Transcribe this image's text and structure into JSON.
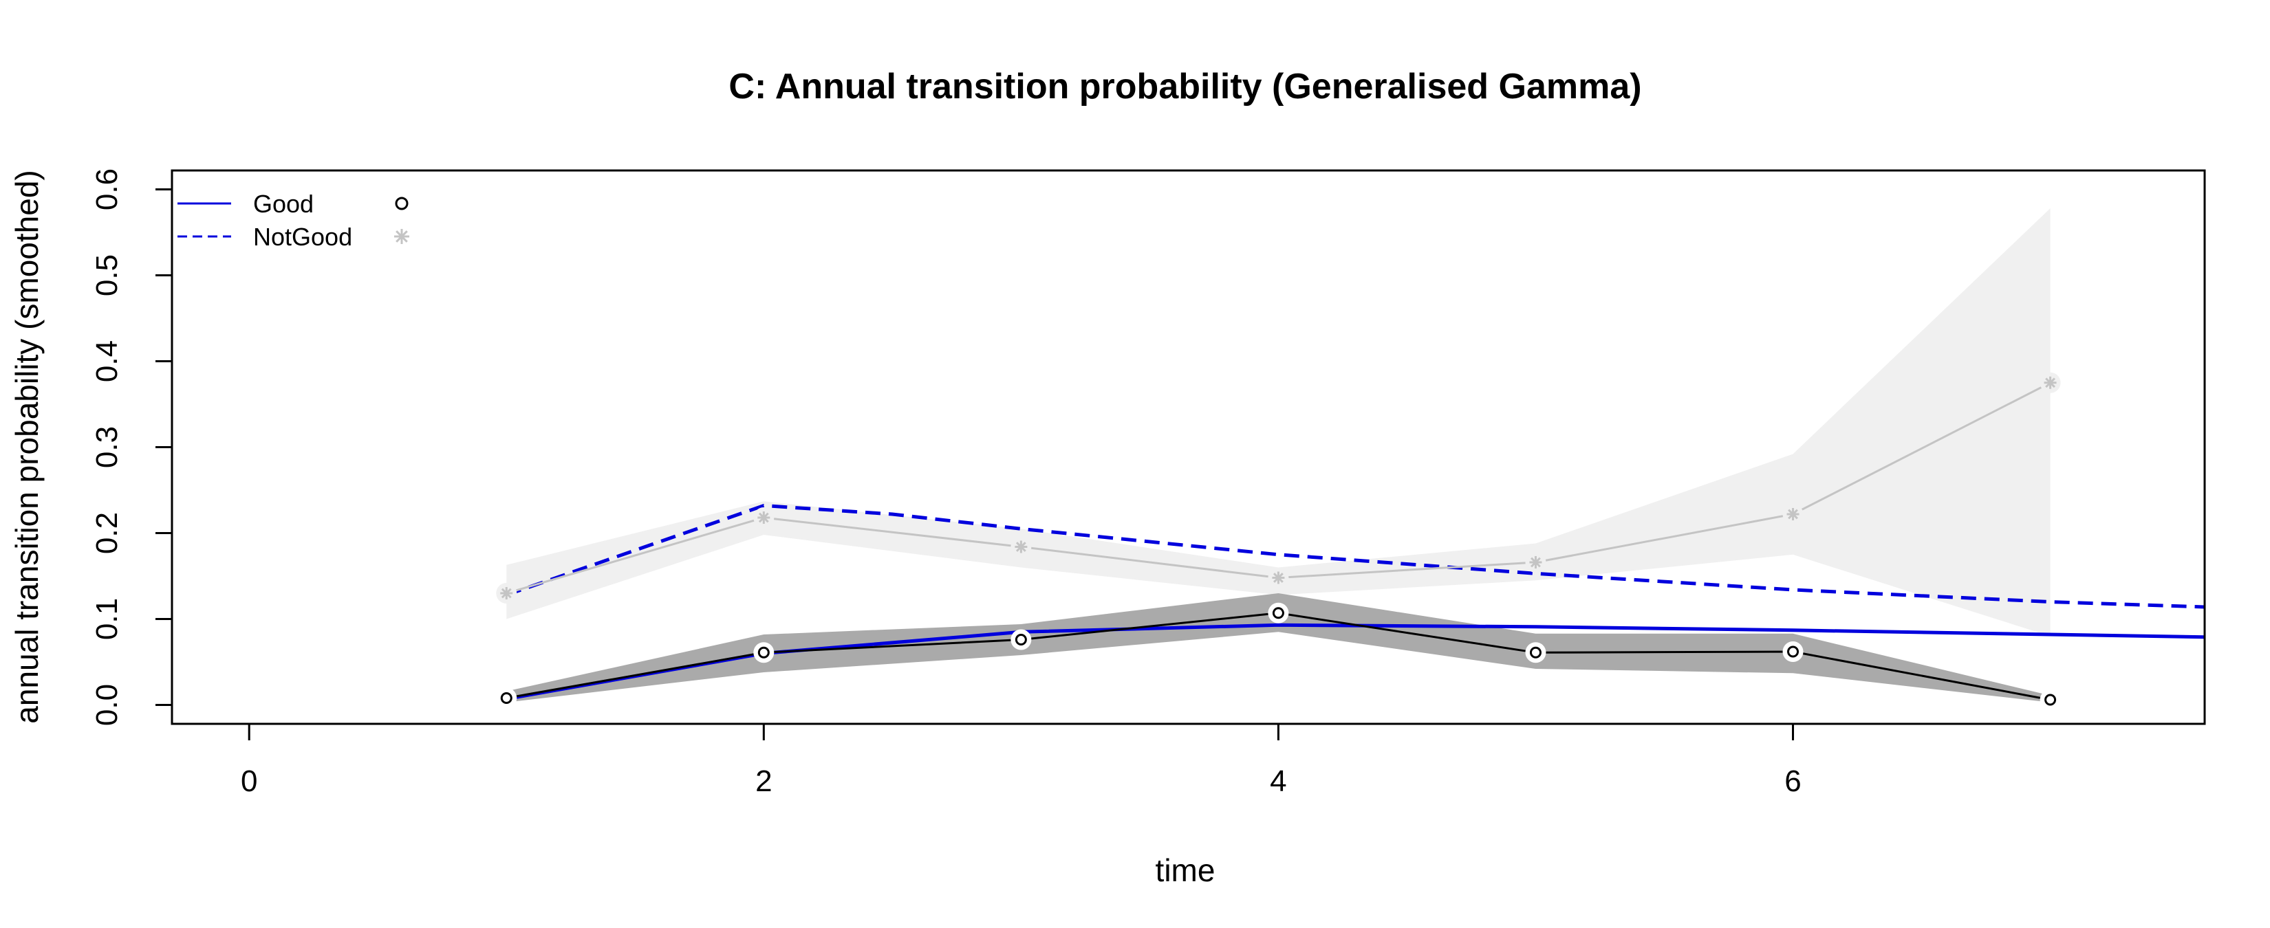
{
  "chart_data": {
    "type": "line",
    "title": "C: Annual transition probability (Generalised Gamma)",
    "xlabel": "time",
    "ylabel": "annual transition probability (smoothed)",
    "xlim": [
      -0.3,
      7.6
    ],
    "ylim": [
      -0.022,
      0.622
    ],
    "x_ticks": [
      0,
      2,
      4,
      6
    ],
    "y_ticks": [
      0.0,
      0.1,
      0.2,
      0.3,
      0.4,
      0.5,
      0.6
    ],
    "grid": false,
    "legend_position": "top-left",
    "legend": [
      {
        "label": "Good",
        "line_style": "solid",
        "marker": "circle"
      },
      {
        "label": "NotGood",
        "line_style": "dashed",
        "marker": "asterisk"
      }
    ],
    "colors": {
      "fitted_line": "#0000dd",
      "good_band": "#aaaaaa",
      "good_observed": "#000000",
      "notgood_band": "#f0f0f0",
      "notgood_observed": "#c4c4c4"
    },
    "series": [
      {
        "name": "NotGood",
        "kind": "observed",
        "x": [
          1,
          2,
          3,
          4,
          5,
          6,
          7
        ],
        "y": [
          0.13,
          0.218,
          0.184,
          0.148,
          0.166,
          0.222,
          0.375
        ],
        "band_lower": [
          0.1,
          0.198,
          0.16,
          0.128,
          0.145,
          0.175,
          0.08
        ],
        "band_upper": [
          0.163,
          0.237,
          0.205,
          0.16,
          0.188,
          0.292,
          0.578
        ]
      },
      {
        "name": "Good",
        "kind": "observed",
        "x": [
          1,
          2,
          3,
          4,
          5,
          6,
          7
        ],
        "y": [
          0.008,
          0.061,
          0.076,
          0.107,
          0.061,
          0.062,
          0.006
        ],
        "band_lower": [
          0.003,
          0.038,
          0.058,
          0.085,
          0.042,
          0.037,
          0.003
        ],
        "band_upper": [
          0.016,
          0.082,
          0.094,
          0.13,
          0.083,
          0.083,
          0.011
        ]
      },
      {
        "name": "NotGood",
        "kind": "fitted",
        "x": [
          1,
          2,
          2.5,
          3,
          4,
          5,
          6,
          7,
          7.6
        ],
        "y": [
          0.128,
          0.232,
          0.222,
          0.205,
          0.175,
          0.153,
          0.134,
          0.12,
          0.114
        ]
      },
      {
        "name": "Good",
        "kind": "fitted",
        "x": [
          1,
          2,
          3,
          4,
          5,
          6,
          7,
          7.6
        ],
        "y": [
          0.007,
          0.06,
          0.085,
          0.093,
          0.091,
          0.087,
          0.082,
          0.079
        ]
      }
    ]
  }
}
